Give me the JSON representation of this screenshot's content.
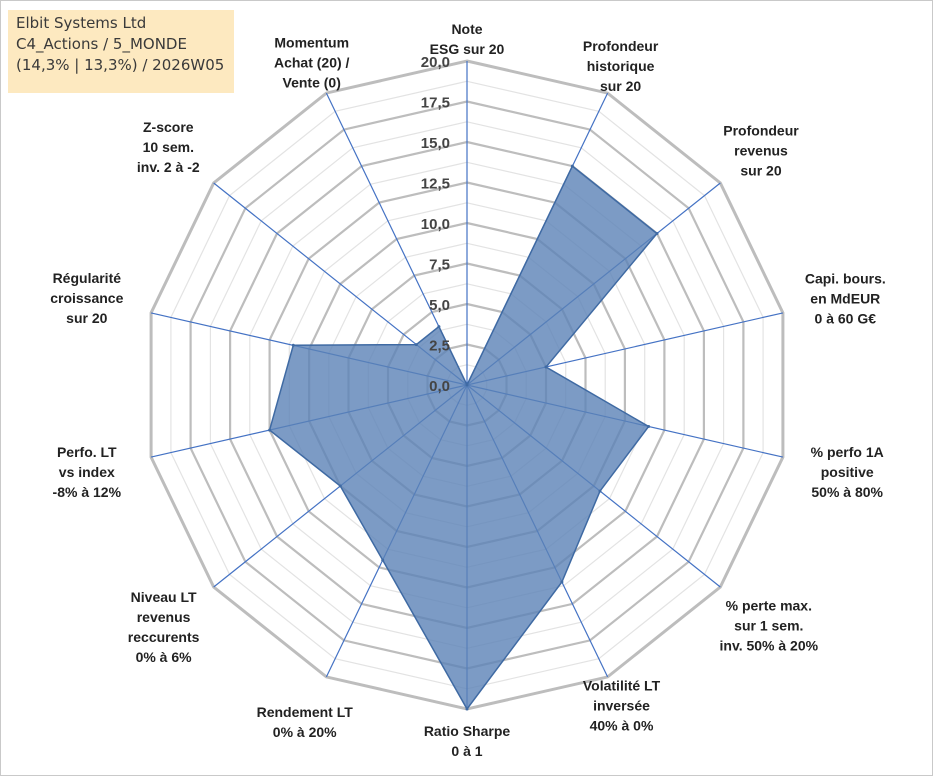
{
  "title_box": {
    "line1": "Elbit Systems Ltd",
    "line2": "C4_Actions / 5_MONDE",
    "line3": "(14,3% | 13,3%) / 2026W05"
  },
  "chart_data": {
    "type": "radar",
    "axes": [
      "Note ESG sur 20",
      "Profondeur historique sur 20",
      "Profondeur revenus sur 20",
      "Capi. bours. en MdEUR 0 à 60 G€",
      "% perfo 1A positive 50% à 80%",
      "% perte max. sur 1 sem. inv. 50% à 20%",
      "Volatilité LT inversée 40% à 0%",
      "Ratio Sharpe 0 à 1",
      "Rendement LT 0% à 20%",
      "Niveau LT revenus reccurents 0% à 6%",
      "Perfo. LT vs index -8% à 12%",
      "Régularité croissance sur 20",
      "Z-score 10 sem. inv. 2 à -2",
      "Momentum Achat (20) / Vente (0)"
    ],
    "axis_label_lines": [
      [
        "Note",
        "ESG sur 20"
      ],
      [
        "Profondeur",
        "historique",
        "sur 20"
      ],
      [
        "Profondeur",
        "revenus",
        "sur 20"
      ],
      [
        "Capi. bours.",
        "en MdEUR",
        "0 à 60 G€"
      ],
      [
        "% perfo 1A",
        "positive",
        "50% à 80%"
      ],
      [
        "% perte max.",
        "sur 1 sem.",
        "inv. 50% à 20%"
      ],
      [
        "Volatilité LT",
        "inversée",
        "40% à 0%"
      ],
      [
        "Ratio Sharpe",
        "0 à 1"
      ],
      [
        "Rendement LT",
        "0% à 20%"
      ],
      [
        "Niveau LT",
        "revenus",
        "reccurents",
        "0% à 6%"
      ],
      [
        "Perfo. LT",
        "vs index",
        "-8% à 12%"
      ],
      [
        "Régularité",
        "croissance",
        "sur 20"
      ],
      [
        "Z-score",
        "10 sem.",
        "inv. 2 à -2"
      ],
      [
        "Momentum",
        "Achat (20) /",
        "Vente (0)"
      ]
    ],
    "series": [
      {
        "name": "Elbit Systems Ltd",
        "values": [
          0.0,
          15.0,
          15.0,
          5.0,
          11.5,
          10.5,
          13.5,
          20.0,
          12.0,
          10.0,
          12.5,
          11.0,
          4.0,
          4.0
        ]
      }
    ],
    "rlim": [
      0,
      20
    ],
    "rticks": [
      0,
      2.5,
      5,
      7.5,
      10,
      12.5,
      15,
      17.5,
      20
    ],
    "rtick_labels": [
      "0,0",
      "2,5",
      "5,0",
      "7,5",
      "10,0",
      "12,5",
      "15,0",
      "17,5",
      "20,0"
    ],
    "colors": {
      "fill": "#5b82b7",
      "line": "#3f6aa3",
      "spoke": "#4472c4",
      "grid": "#bfbfbf"
    }
  }
}
